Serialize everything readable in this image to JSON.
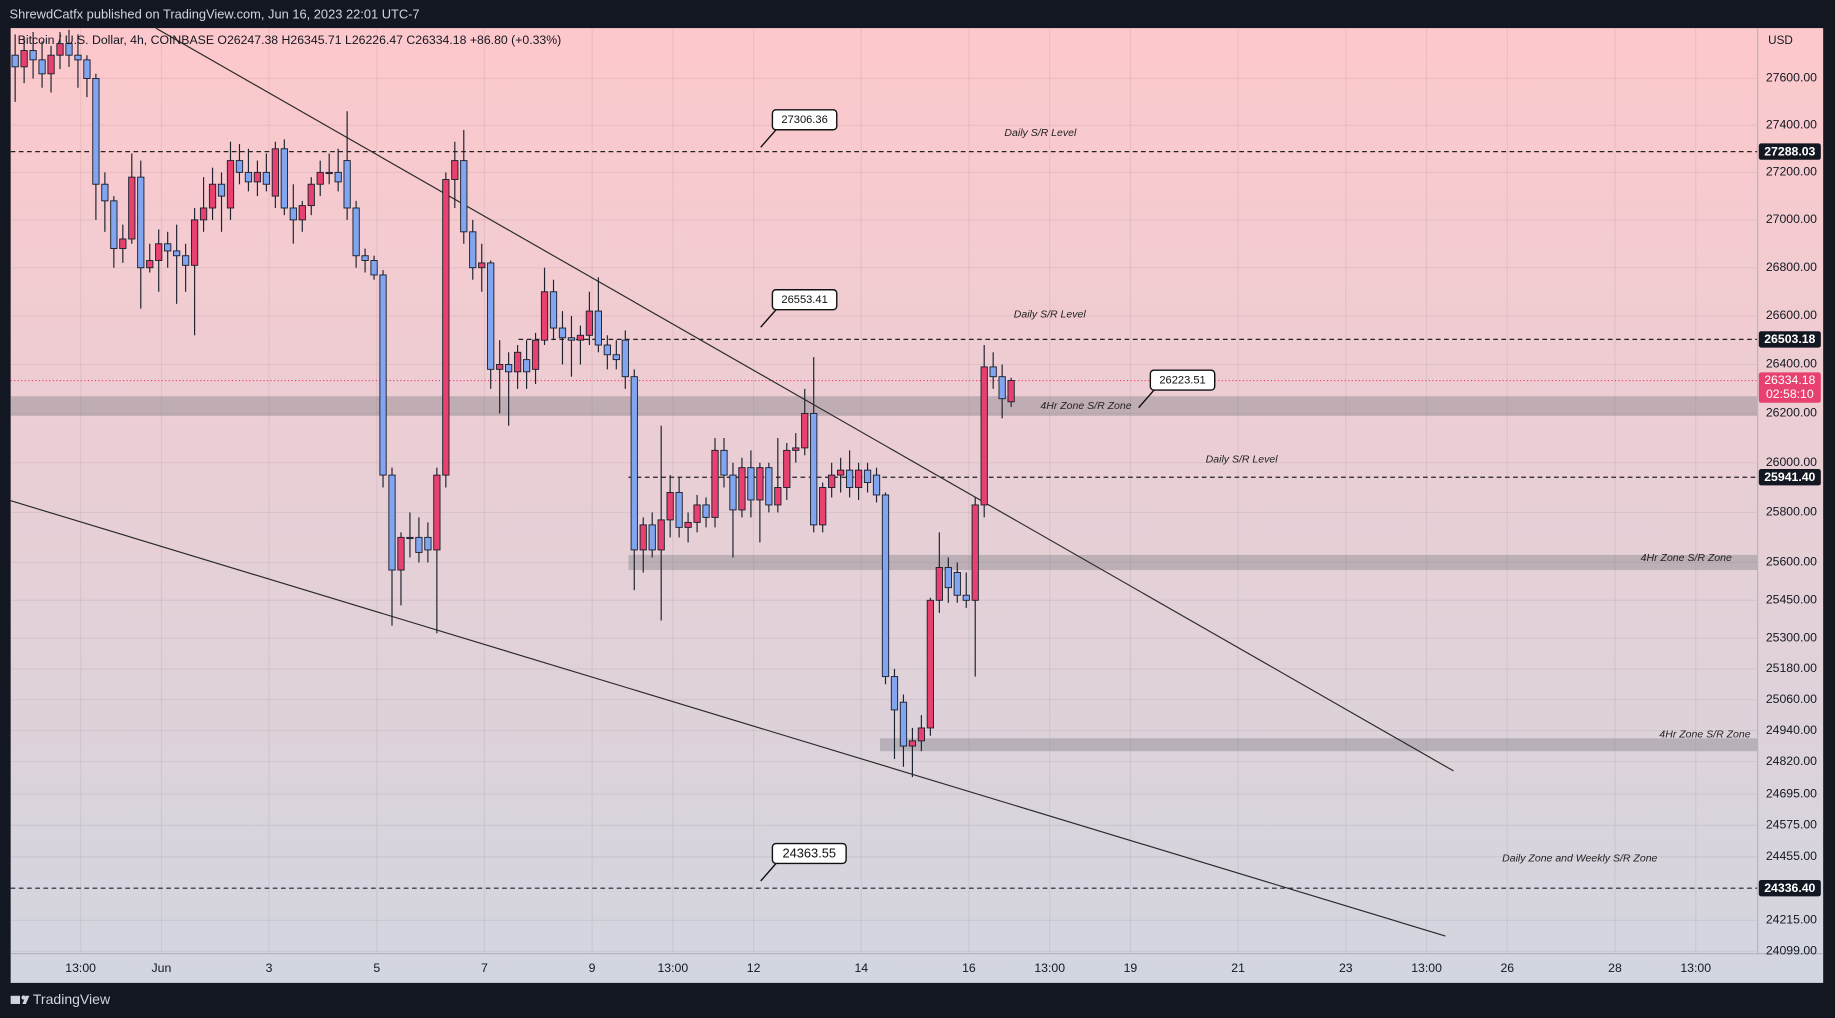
{
  "header": "ShrewdCatfx published on TradingView.com, Jun 16, 2023 22:01 UTC-7",
  "footer": "TradingView",
  "chart_data": {
    "type": "candlestick",
    "symbol": "Bitcoin / U.S. Dollar, 4h, COINBASE",
    "ohlc_labels": [
      "O26247.38",
      "H26345.71",
      "L26226.47",
      "C26334.18"
    ],
    "change": "+86.80 (+0.33%)",
    "currency": "USD",
    "log_scale": true,
    "grid": true,
    "up_color": "#e8416f",
    "down_color": "#82a5f0",
    "xlim": [
      0,
      194.7
    ],
    "xticks": [
      {
        "value": 7.8,
        "label": "13:00"
      },
      {
        "value": 16.8,
        "label": "Jun"
      },
      {
        "value": 28.8,
        "label": "3"
      },
      {
        "value": 40.8,
        "label": "5"
      },
      {
        "value": 52.8,
        "label": "7"
      },
      {
        "value": 64.8,
        "label": "9"
      },
      {
        "value": 73.8,
        "label": "13:00"
      },
      {
        "value": 82.8,
        "label": "12"
      },
      {
        "value": 94.8,
        "label": "14"
      },
      {
        "value": 106.8,
        "label": "16"
      },
      {
        "value": 115.8,
        "label": "13:00"
      },
      {
        "value": 124.8,
        "label": "19"
      },
      {
        "value": 136.8,
        "label": "21"
      },
      {
        "value": 148.8,
        "label": "23"
      },
      {
        "value": 157.8,
        "label": "13:00"
      },
      {
        "value": 166.8,
        "label": "26"
      },
      {
        "value": 178.8,
        "label": "28"
      },
      {
        "value": 187.8,
        "label": "13:00"
      }
    ],
    "ylim": [
      24090,
      27817
    ],
    "yticks": [
      {
        "value": 27600,
        "label": "27600.00"
      },
      {
        "value": 27400,
        "label": "27400.00"
      },
      {
        "value": 27200,
        "label": "27200.00"
      },
      {
        "value": 27000,
        "label": "27000.00"
      },
      {
        "value": 26800,
        "label": "26800.00"
      },
      {
        "value": 26600,
        "label": "26600.00"
      },
      {
        "value": 26400,
        "label": "26400.00"
      },
      {
        "value": 26200,
        "label": "26200.00"
      },
      {
        "value": 26000,
        "label": "26000.00"
      },
      {
        "value": 25800,
        "label": "25800.00"
      },
      {
        "value": 25600,
        "label": "25600.00"
      },
      {
        "value": 25450,
        "label": "25450.00"
      },
      {
        "value": 25300,
        "label": "25300.00"
      },
      {
        "value": 25180,
        "label": "25180.00"
      },
      {
        "value": 25060,
        "label": "25060.00"
      },
      {
        "value": 24940,
        "label": "24940.00"
      },
      {
        "value": 24820,
        "label": "24820.00"
      },
      {
        "value": 24695,
        "label": "24695.00"
      },
      {
        "value": 24575,
        "label": "24575.00"
      },
      {
        "value": 24455,
        "label": "24455.00"
      },
      {
        "value": 24215,
        "label": "24215.00"
      },
      {
        "value": 24099,
        "label": "24099.00"
      }
    ],
    "candles": [
      [
        27700,
        27790,
        27500,
        27650
      ],
      [
        27650,
        27780,
        27580,
        27720
      ],
      [
        27720,
        27800,
        27600,
        27680
      ],
      [
        27680,
        27760,
        27560,
        27620
      ],
      [
        27620,
        27740,
        27540,
        27700
      ],
      [
        27700,
        27800,
        27640,
        27750
      ],
      [
        27750,
        27810,
        27650,
        27700
      ],
      [
        27700,
        27790,
        27560,
        27680
      ],
      [
        27680,
        27700,
        27520,
        27600
      ],
      [
        27600,
        27620,
        27000,
        27150
      ],
      [
        27150,
        27200,
        26950,
        27080
      ],
      [
        27080,
        27100,
        26800,
        26880
      ],
      [
        26880,
        26980,
        26820,
        26920
      ],
      [
        26920,
        27280,
        26900,
        27180
      ],
      [
        27180,
        27250,
        26630,
        26800
      ],
      [
        26800,
        26900,
        26780,
        26830
      ],
      [
        26830,
        26960,
        26700,
        26900
      ],
      [
        26900,
        26950,
        26800,
        26870
      ],
      [
        26870,
        26980,
        26650,
        26850
      ],
      [
        26850,
        26900,
        26700,
        26810
      ],
      [
        26810,
        27050,
        26520,
        27000
      ],
      [
        27000,
        27180,
        26950,
        27050
      ],
      [
        27050,
        27220,
        27000,
        27150
      ],
      [
        27150,
        27200,
        26950,
        27100
      ],
      [
        27050,
        27330,
        27000,
        27250
      ],
      [
        27250,
        27320,
        27150,
        27200
      ],
      [
        27200,
        27300,
        27120,
        27160
      ],
      [
        27160,
        27250,
        27100,
        27200
      ],
      [
        27200,
        27280,
        27120,
        27150
      ],
      [
        27100,
        27330,
        27050,
        27300
      ],
      [
        27300,
        27340,
        27020,
        27050
      ],
      [
        27050,
        27150,
        26900,
        27000
      ],
      [
        27000,
        27080,
        26950,
        27060
      ],
      [
        27060,
        27180,
        27020,
        27150
      ],
      [
        27150,
        27250,
        27100,
        27200
      ],
      [
        27200,
        27280,
        27150,
        27200
      ],
      [
        27200,
        27300,
        27120,
        27160
      ],
      [
        27250,
        27460,
        27000,
        27050
      ],
      [
        27050,
        27080,
        26800,
        26850
      ],
      [
        26850,
        26880,
        26780,
        26830
      ],
      [
        26830,
        26850,
        26750,
        26770
      ],
      [
        26770,
        26790,
        25900,
        25950
      ],
      [
        25950,
        25980,
        25350,
        25570
      ],
      [
        25570,
        25720,
        25430,
        25700
      ],
      [
        25700,
        25800,
        25620,
        25700
      ],
      [
        25700,
        25780,
        25600,
        25640
      ],
      [
        25700,
        25760,
        25600,
        25650
      ],
      [
        25650,
        25980,
        25320,
        25950
      ],
      [
        25950,
        27200,
        25900,
        27170
      ],
      [
        27170,
        27330,
        27050,
        27250
      ],
      [
        27250,
        27380,
        26900,
        26950
      ],
      [
        26950,
        27000,
        26750,
        26800
      ],
      [
        26800,
        26900,
        26700,
        26820
      ],
      [
        26820,
        26830,
        26300,
        26380
      ],
      [
        26380,
        26500,
        26200,
        26400
      ],
      [
        26400,
        26450,
        26150,
        26370
      ],
      [
        26370,
        26480,
        26300,
        26450
      ],
      [
        26420,
        26500,
        26300,
        26370
      ],
      [
        26380,
        26530,
        26320,
        26500
      ],
      [
        26500,
        26800,
        26480,
        26700
      ],
      [
        26700,
        26750,
        26500,
        26550
      ],
      [
        26550,
        26620,
        26400,
        26510
      ],
      [
        26510,
        26600,
        26350,
        26500
      ],
      [
        26500,
        26560,
        26400,
        26520
      ],
      [
        26520,
        26700,
        26480,
        26620
      ],
      [
        26620,
        26760,
        26450,
        26480
      ],
      [
        26480,
        26520,
        26380,
        26440
      ],
      [
        26440,
        26500,
        26380,
        26420
      ],
      [
        26500,
        26540,
        26300,
        26350
      ],
      [
        26350,
        26380,
        25490,
        25650
      ],
      [
        25650,
        25780,
        25560,
        25750
      ],
      [
        25750,
        25800,
        25620,
        25650
      ],
      [
        25650,
        26150,
        25370,
        25770
      ],
      [
        25770,
        25950,
        25700,
        25880
      ],
      [
        25880,
        25940,
        25700,
        25740
      ],
      [
        25740,
        25800,
        25680,
        25760
      ],
      [
        25760,
        25870,
        25720,
        25830
      ],
      [
        25830,
        25860,
        25740,
        25780
      ],
      [
        25780,
        26100,
        25740,
        26050
      ],
      [
        26050,
        26100,
        25900,
        25950
      ],
      [
        25950,
        26000,
        25620,
        25810
      ],
      [
        25810,
        26020,
        25780,
        25980
      ],
      [
        25980,
        26050,
        25780,
        25850
      ],
      [
        25850,
        26000,
        25680,
        25980
      ],
      [
        25980,
        26000,
        25800,
        25830
      ],
      [
        25830,
        26100,
        25800,
        25900
      ],
      [
        25900,
        26080,
        25850,
        26050
      ],
      [
        26050,
        26120,
        26000,
        26060
      ],
      [
        26060,
        26300,
        26030,
        26200
      ],
      [
        26200,
        26430,
        25720,
        25750
      ],
      [
        25750,
        25920,
        25720,
        25900
      ],
      [
        25900,
        26000,
        25860,
        25950
      ],
      [
        25950,
        26020,
        25880,
        25970
      ],
      [
        25970,
        26050,
        25860,
        25900
      ],
      [
        25900,
        26000,
        25850,
        25970
      ],
      [
        25970,
        26000,
        25880,
        25920
      ],
      [
        25950,
        25980,
        25840,
        25870
      ],
      [
        25870,
        25880,
        25120,
        25150
      ],
      [
        25150,
        25180,
        24830,
        25020
      ],
      [
        25050,
        25080,
        24800,
        24880
      ],
      [
        24880,
        24950,
        24760,
        24900
      ],
      [
        24900,
        25000,
        24860,
        24950
      ],
      [
        24950,
        25460,
        24920,
        25450
      ],
      [
        25450,
        25720,
        25400,
        25580
      ],
      [
        25580,
        25620,
        25440,
        25500
      ],
      [
        25560,
        25600,
        25440,
        25470
      ],
      [
        25470,
        25560,
        25420,
        25450
      ],
      [
        25450,
        25860,
        25150,
        25830
      ],
      [
        25830,
        26480,
        25780,
        26390
      ],
      [
        26390,
        26450,
        26300,
        26350
      ],
      [
        26350,
        26400,
        26180,
        26260
      ],
      [
        26247.38,
        26345.71,
        26226.47,
        26334.18
      ]
    ],
    "levels": [
      27288.03,
      26503.18,
      {
        "value": 25941.4,
        "label": "25941.40"
      },
      {
        "value": 24336.4,
        "label": "24336.40"
      }
    ],
    "last_price": 26334.18,
    "countdown": "02:58:10",
    "zones": [
      [
        26190,
        26270
      ],
      [
        25570,
        25630
      ],
      [
        24860,
        24910
      ]
    ],
    "trendlines": [
      {
        "x": [
          16.17,
          160.8
        ],
        "y": [
          27817,
          24784
        ]
      },
      {
        "x": [
          0,
          159.9
        ],
        "y": [
          25847,
          24156
        ]
      }
    ],
    "callouts": [
      27306.36,
      26553.41,
      26223.51,
      24363.55
    ],
    "annotations": [
      "Daily S/R Level",
      "Daily S/R Level",
      "Daily S/R Level",
      "4Hr Zone S/R Zone",
      "4Hr Zone S/R Zone",
      "4Hr Zone S/R Zone",
      "Daily Zone and Weekly S/R Zone"
    ]
  }
}
